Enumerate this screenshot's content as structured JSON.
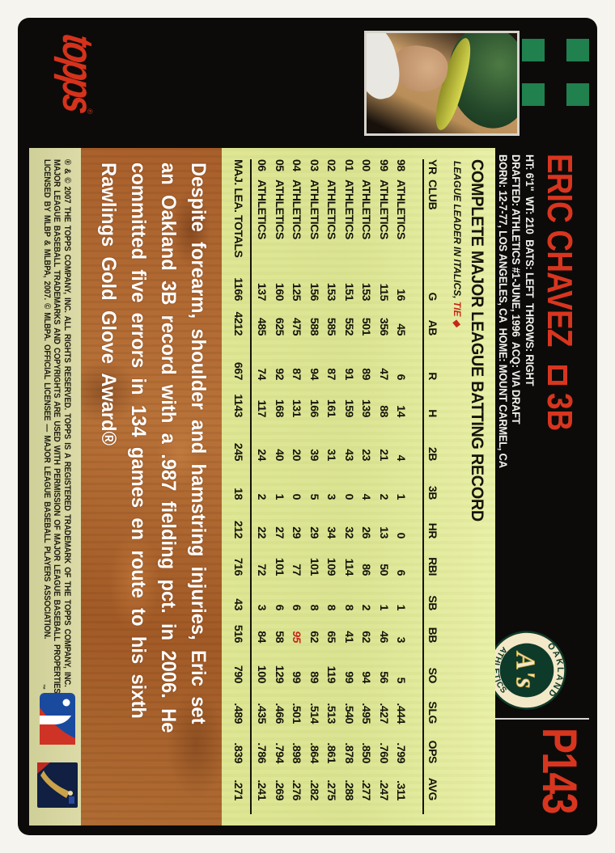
{
  "player": {
    "name": "ERIC CHAVEZ",
    "position": "3B"
  },
  "bio_lines": [
    "HT: 6'1\"  WT: 210  BATS: LEFT  THROWS: RIGHT",
    "DRAFTED: ATHLETICS #1-JUNE, 1996  ACQ: VIA DRAFT",
    "BORN: 12-7-77, LOS ANGELES, CA  HOME: MOUNT CARMEL, CA"
  ],
  "card_number": "P143",
  "brand": {
    "logo_text": "topps",
    "reg_mark": "®"
  },
  "team_logo": {
    "top": "OAKLAND",
    "bottom": "ATHLETICS",
    "monogram": "A's",
    "tm": "™"
  },
  "stats": {
    "title": "COMPLETE MAJOR LEAGUE BATTING RECORD",
    "note": {
      "prefix": "LEAGUE LEADER IN ITALICS, ",
      "tie": "TIE",
      "diamond": "◆"
    },
    "columns": [
      "YR",
      "CLUB",
      "G",
      "AB",
      "R",
      "H",
      "2B",
      "3B",
      "HR",
      "RBI",
      "SB",
      "BB",
      "SO",
      "SLG",
      "OPS",
      "AVG"
    ],
    "rows": [
      {
        "yr": "98",
        "club": "ATHLETICS",
        "values": [
          "16",
          "45",
          "6",
          "14",
          "4",
          "1",
          "0",
          "6",
          "1",
          "3",
          "5",
          ".444",
          ".799",
          ".311"
        ]
      },
      {
        "yr": "99",
        "club": "ATHLETICS",
        "values": [
          "115",
          "356",
          "47",
          "88",
          "21",
          "2",
          "13",
          "50",
          "1",
          "46",
          "56",
          ".427",
          ".760",
          ".247"
        ]
      },
      {
        "yr": "00",
        "club": "ATHLETICS",
        "values": [
          "153",
          "501",
          "89",
          "139",
          "23",
          "4",
          "26",
          "86",
          "2",
          "62",
          "94",
          ".495",
          ".850",
          ".277"
        ]
      },
      {
        "yr": "01",
        "club": "ATHLETICS",
        "values": [
          "151",
          "552",
          "91",
          "159",
          "43",
          "0",
          "32",
          "114",
          "8",
          "41",
          "99",
          ".540",
          ".878",
          ".288"
        ]
      },
      {
        "yr": "02",
        "club": "ATHLETICS",
        "values": [
          "153",
          "585",
          "87",
          "161",
          "31",
          "3",
          "34",
          "109",
          "8",
          "65",
          "119",
          ".513",
          ".861",
          ".275"
        ]
      },
      {
        "yr": "03",
        "club": "ATHLETICS",
        "values": [
          "156",
          "588",
          "94",
          "166",
          "39",
          "5",
          "29",
          "101",
          "8",
          "62",
          "89",
          ".514",
          ".864",
          ".282"
        ]
      },
      {
        "yr": "04",
        "club": "ATHLETICS",
        "values": [
          "125",
          "475",
          "87",
          "131",
          "20",
          "0",
          "29",
          "77",
          "6",
          "95",
          "99",
          ".501",
          ".898",
          ".276"
        ]
      },
      {
        "yr": "05",
        "club": "ATHLETICS",
        "values": [
          "160",
          "625",
          "92",
          "168",
          "40",
          "1",
          "27",
          "101",
          "6",
          "58",
          "129",
          ".466",
          ".794",
          ".269"
        ]
      },
      {
        "yr": "06",
        "club": "ATHLETICS",
        "values": [
          "137",
          "485",
          "74",
          "117",
          "24",
          "2",
          "22",
          "72",
          "3",
          "84",
          "100",
          ".435",
          ".786",
          ".241"
        ]
      }
    ],
    "totals": {
      "label": "MAJ. LEA. TOTALS",
      "values": [
        "1166",
        "4212",
        "667",
        "1143",
        "245",
        "18",
        "212",
        "716",
        "43",
        "516",
        "790",
        ".489",
        ".839",
        ".271"
      ]
    },
    "leader_highlight": {
      "row_yr": "04",
      "column": "BB"
    }
  },
  "blurb_lines": [
    "Despite forearm, shoulder and hamstring injuries, Eric set",
    "an Oakland 3B record with a .987 fielding pct. in 2006. He",
    "committed five errors in 134 games en route to his sixth",
    "Rawlings Gold Glove Award®"
  ],
  "fine_print_lines": [
    "® & © 2007 THE TOPPS COMPANY, INC. ALL RIGHTS RESERVED. TOPPS IS A REGISTERED TRADEMARK OF THE TOPPS COMPANY, INC.",
    "MAJOR LEAGUE BASEBALL TRADEMARKS AND COPYRIGHTS ARE USED WITH PERMISSION OF MAJOR LEAGUE BASEBALL PROPERTIES, INC.",
    "LICENSED BY MLBP & MLBPA, 2007. © MLBPA. OFFICIAL LICENSEE — MAJOR LEAGUE BASEBALL PLAYERS ASSOCIATION."
  ],
  "colors": {
    "accent_red": "#d8351f",
    "panel_yellow": "#dde693",
    "strip_tan": "#d6d5a0",
    "copper": "#b06831",
    "squares_green": "#20804e",
    "logo_green": "#0e3a2a",
    "logo_cream": "#f3e9c8"
  }
}
